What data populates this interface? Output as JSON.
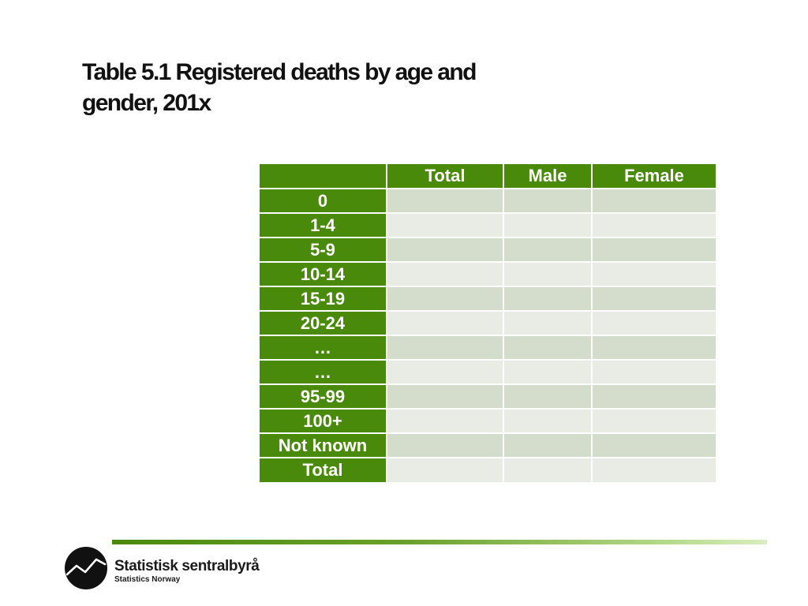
{
  "title": {
    "line1": "Table 5.1 Registered deaths by age and",
    "line2": "gender, 201x"
  },
  "table": {
    "columns": [
      "",
      "Total",
      "Male",
      "Female"
    ],
    "rows": [
      {
        "label": "0",
        "values": [
          "",
          "",
          ""
        ]
      },
      {
        "label": "1-4",
        "values": [
          "",
          "",
          ""
        ]
      },
      {
        "label": "5-9",
        "values": [
          "",
          "",
          ""
        ]
      },
      {
        "label": "10-14",
        "values": [
          "",
          "",
          ""
        ]
      },
      {
        "label": "15-19",
        "values": [
          "",
          "",
          ""
        ]
      },
      {
        "label": "20-24",
        "values": [
          "",
          "",
          ""
        ]
      },
      {
        "label": "…",
        "values": [
          "",
          "",
          ""
        ]
      },
      {
        "label": "…",
        "values": [
          "",
          "",
          ""
        ]
      },
      {
        "label": "95-99",
        "values": [
          "",
          "",
          ""
        ]
      },
      {
        "label": "100+",
        "values": [
          "",
          "",
          ""
        ]
      },
      {
        "label": "Not known",
        "values": [
          "",
          "",
          ""
        ]
      },
      {
        "label": "Total",
        "values": [
          "",
          "",
          ""
        ]
      }
    ]
  },
  "footer": {
    "brand": "Statistisk sentralbyrå",
    "subtitle": "Statistics Norway",
    "logo_icon": "ssb-logo-icon"
  },
  "colors": {
    "header_green": "#4a8a0b",
    "cell_dark": "#d4dccb",
    "cell_light": "#e8ece4"
  }
}
